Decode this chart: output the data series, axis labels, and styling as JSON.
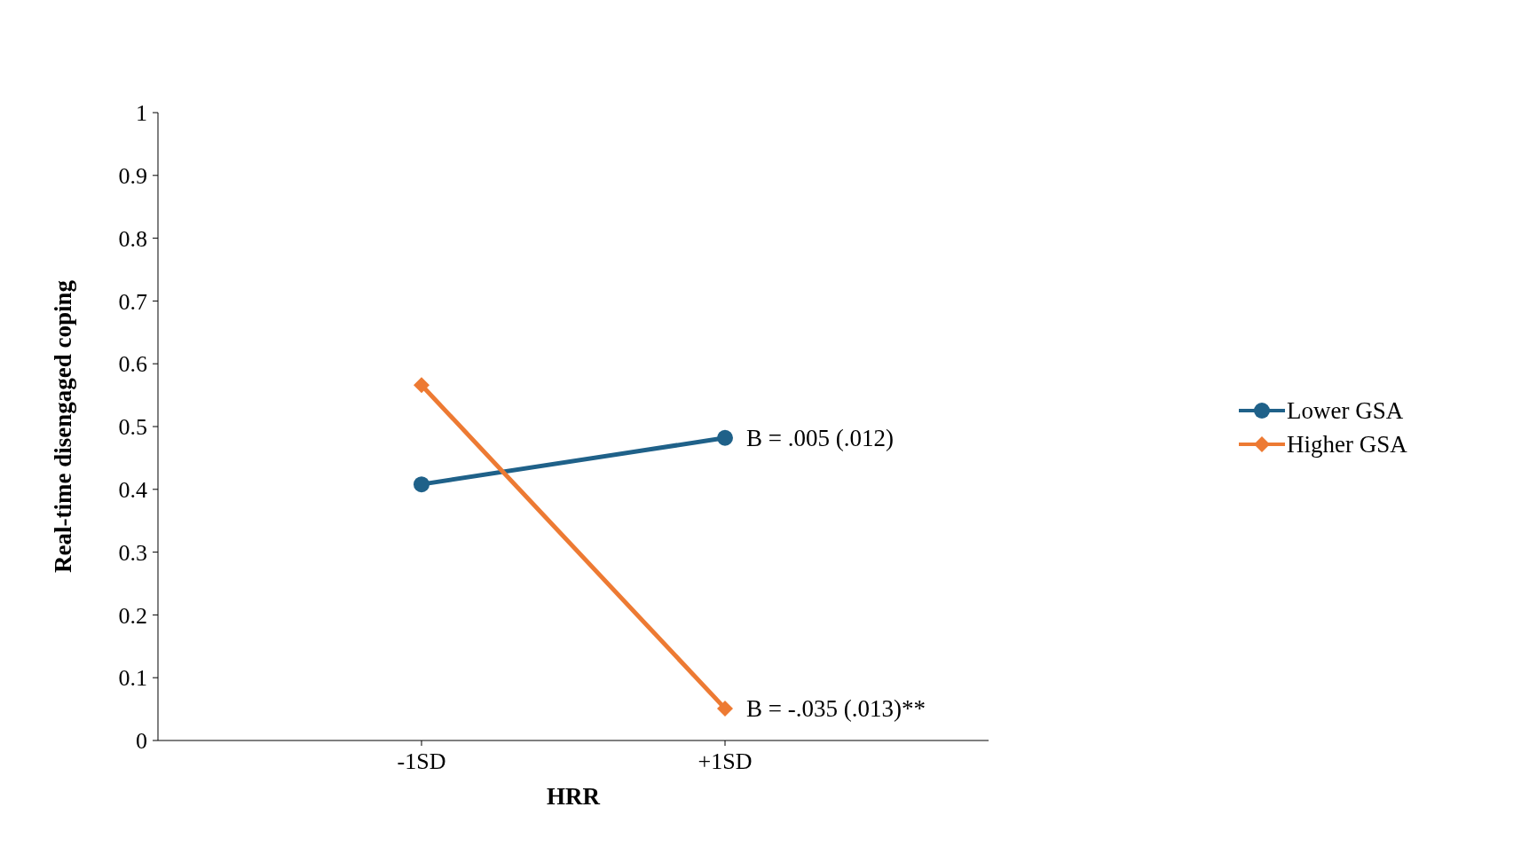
{
  "chart_data": {
    "type": "line",
    "xlabel": "HRR",
    "ylabel": "Real-time disengaged coping",
    "categories": [
      "-1SD",
      "+1SD"
    ],
    "series": [
      {
        "name": "Lower GSA",
        "color": "#1f6189",
        "values": [
          0.408,
          0.482
        ],
        "marker": "circle"
      },
      {
        "name": "Higher GSA",
        "color": "#ed7a33",
        "values": [
          0.566,
          0.051
        ],
        "marker": "diamond"
      }
    ],
    "ylim": [
      0,
      1
    ],
    "yticks": [
      0,
      0.1,
      0.2,
      0.3,
      0.4,
      0.5,
      0.6,
      0.7,
      0.8,
      0.9,
      1
    ],
    "grid": false,
    "legend": "right",
    "line_style": "solid",
    "annotations": [
      {
        "text": "B = .005 (.012)",
        "x": "+1SD",
        "y": 0.482
      },
      {
        "text": "B = -.035 (.013)**",
        "x": "+1SD",
        "y": 0.051
      }
    ]
  }
}
